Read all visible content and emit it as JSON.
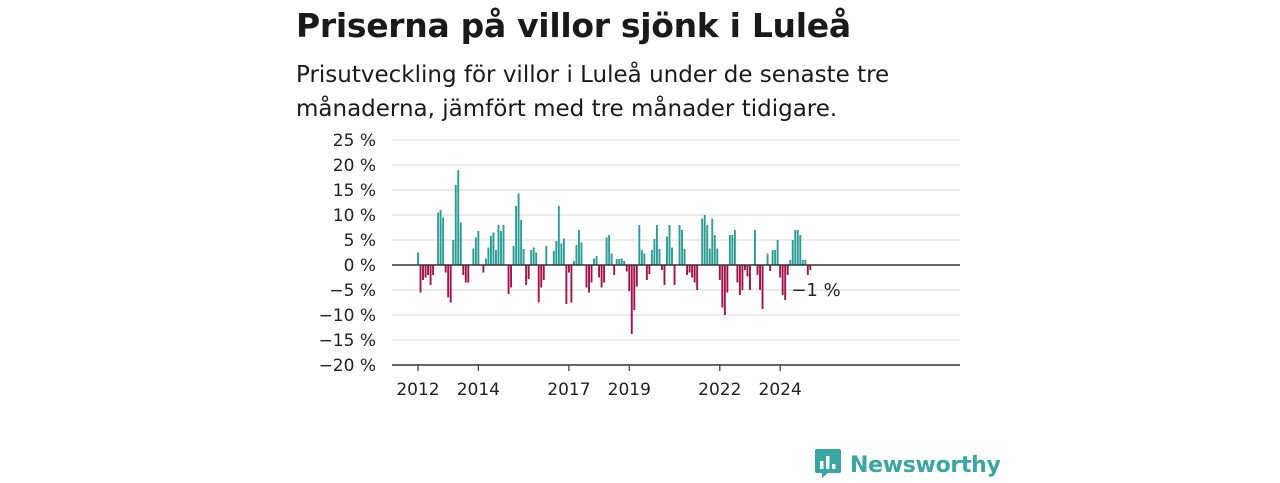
{
  "header": {
    "title": "Priserna på villor sjönk i Luleå",
    "subtitle": "Prisutveckling för villor i Luleå under de senaste tre månaderna, jämfört med tre månader tidigare."
  },
  "brand": {
    "name": "Newsworthy",
    "icon": "newsworthy-logo-icon",
    "color": "#3aa6a4"
  },
  "chart_data": {
    "type": "bar",
    "ylim": [
      -20,
      25
    ],
    "y_ticks": [
      25,
      20,
      15,
      10,
      5,
      0,
      -5,
      -10,
      -15,
      -20
    ],
    "y_tick_labels": [
      "25 %",
      "20 %",
      "15 %",
      "10 %",
      "5 %",
      "0 %",
      "−5 %",
      "−10 %",
      "−15 %",
      "−20 %"
    ],
    "x_start": "2012-01",
    "x_end": "2024-12",
    "x_ticks": [
      {
        "date": "2012-01",
        "label": "2012"
      },
      {
        "date": "2014-01",
        "label": "2014"
      },
      {
        "date": "2017-01",
        "label": "2017"
      },
      {
        "date": "2019-01",
        "label": "2019"
      },
      {
        "date": "2022-01",
        "label": "2022"
      },
      {
        "date": "2024-01",
        "label": "2024"
      }
    ],
    "grid": true,
    "colors": {
      "positive": "#2a9d96",
      "negative": "#a3124a",
      "grid": "#d9d9d9",
      "axis": "#333333"
    },
    "end_label": "−1 %",
    "values": [
      2.5,
      -5.5,
      -3,
      -2.5,
      -2,
      -4,
      -2,
      0,
      10.5,
      11,
      9.5,
      -1.5,
      -6.5,
      -7.5,
      5,
      16,
      19,
      8.5,
      -2,
      -3.5,
      -3.5,
      0,
      3.3,
      5.5,
      6.8,
      0,
      -1.5,
      1.3,
      3.5,
      5.8,
      6.5,
      3,
      8,
      6.8,
      8,
      0,
      -5.8,
      -4.5,
      3.8,
      11.8,
      14.3,
      9,
      3.2,
      -4,
      -2.8,
      3,
      3.5,
      2.5,
      -7.5,
      -4.5,
      -3,
      3.8,
      0,
      0,
      2.8,
      4.8,
      11.8,
      4.3,
      5.3,
      -7.8,
      -1.5,
      -7.5,
      0.8,
      4,
      7,
      4.5,
      0,
      -4.5,
      -5.5,
      -3.5,
      1.3,
      1.8,
      -2.5,
      -4.5,
      -3.5,
      5.5,
      6,
      2.3,
      -2,
      1.2,
      1.2,
      1.3,
      0.8,
      -1.3,
      -5.2,
      -13.8,
      -9,
      -4.3,
      8,
      3,
      2.3,
      -3,
      -1.8,
      3,
      5.2,
      8,
      3.2,
      -1,
      -4,
      5.7,
      8,
      3.5,
      -4,
      0,
      8,
      7,
      3.2,
      -2,
      -1.5,
      -2.5,
      -3.5,
      -5,
      0,
      9.3,
      10,
      8,
      3.3,
      9.3,
      6,
      3.3,
      -3,
      -8.5,
      -10,
      -5.5,
      6,
      6,
      7,
      -3.5,
      -6,
      -5,
      -1,
      -2.3,
      -5,
      0,
      7,
      -2,
      -5,
      -8.8,
      0,
      2.3,
      -1.2,
      3,
      3,
      5,
      -2.5,
      -6,
      -7,
      -2,
      1,
      5,
      7,
      7,
      6,
      1,
      1,
      -2,
      -1
    ]
  }
}
